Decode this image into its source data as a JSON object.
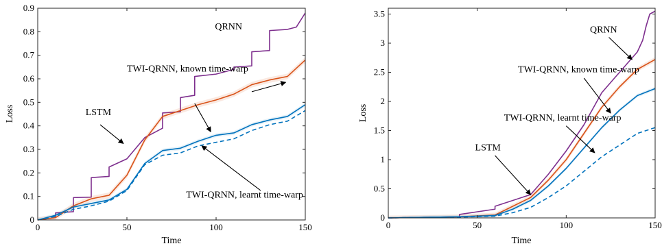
{
  "chart_data": [
    {
      "type": "line",
      "xlabel": "Time",
      "ylabel": "Loss",
      "xlim": [
        0,
        150
      ],
      "ylim": [
        0,
        0.9
      ],
      "xticks": [
        0,
        50,
        100,
        150
      ],
      "yticks": [
        0,
        0.1,
        0.2,
        0.3,
        0.4,
        0.5,
        0.6,
        0.7,
        0.8,
        0.9
      ],
      "ytick_labels": [
        "0",
        "0.1",
        "0.2",
        "0.3",
        "0.4",
        "0.5",
        "0.6",
        "0.7",
        "0.8",
        "0.9"
      ],
      "grid": false,
      "series": [
        {
          "id": "qrnn",
          "color": "#7E2F8E",
          "dash": false,
          "x": [
            0,
            10,
            10,
            20,
            20,
            30,
            30,
            40,
            40,
            50,
            60,
            70,
            70,
            80,
            80,
            88,
            88,
            100,
            110,
            110,
            120,
            120,
            130,
            130,
            140,
            145,
            150
          ],
          "y": [
            0,
            0.01,
            0.03,
            0.035,
            0.095,
            0.097,
            0.18,
            0.185,
            0.225,
            0.26,
            0.35,
            0.39,
            0.455,
            0.46,
            0.52,
            0.53,
            0.61,
            0.62,
            0.64,
            0.65,
            0.655,
            0.715,
            0.72,
            0.805,
            0.81,
            0.82,
            0.88
          ]
        },
        {
          "id": "twi-known",
          "color": "#D95319",
          "dash": false,
          "band": 0.012,
          "x": [
            0,
            10,
            20,
            30,
            40,
            50,
            60,
            70,
            80,
            90,
            100,
            110,
            120,
            130,
            140,
            150
          ],
          "y": [
            0,
            0.01,
            0.06,
            0.09,
            0.105,
            0.19,
            0.34,
            0.44,
            0.465,
            0.49,
            0.51,
            0.535,
            0.575,
            0.595,
            0.61,
            0.68
          ]
        },
        {
          "id": "twi-learnt",
          "color": "#0072BD",
          "dash": false,
          "band": 0.008,
          "x": [
            0,
            10,
            20,
            30,
            40,
            50,
            60,
            70,
            80,
            90,
            100,
            110,
            120,
            130,
            140,
            150
          ],
          "y": [
            0,
            0.02,
            0.055,
            0.07,
            0.085,
            0.13,
            0.24,
            0.295,
            0.305,
            0.335,
            0.36,
            0.37,
            0.405,
            0.425,
            0.44,
            0.49
          ]
        },
        {
          "id": "lstm",
          "color": "#0072BD",
          "dash": true,
          "x": [
            0,
            10,
            20,
            30,
            40,
            50,
            60,
            70,
            80,
            90,
            100,
            110,
            120,
            130,
            140,
            150
          ],
          "y": [
            0,
            0.015,
            0.045,
            0.06,
            0.08,
            0.125,
            0.235,
            0.275,
            0.285,
            0.315,
            0.33,
            0.345,
            0.38,
            0.405,
            0.42,
            0.465
          ]
        }
      ],
      "annotations": [
        {
          "text": "QRNN",
          "tx": 107,
          "ty": 0.81,
          "ax": 113,
          "ay": 0.78,
          "hx": 113,
          "hy": 0.78,
          "anchor": "middle",
          "arrow": false
        },
        {
          "text": "TWI-QRNN, known time-warp",
          "tx": 50,
          "ty": 0.63,
          "ax": 88,
          "ay": 0.495,
          "hx": 97,
          "hy": 0.375,
          "anchor": "start",
          "arrow": true
        },
        {
          "text": "LSTM",
          "tx": 34,
          "ty": 0.445,
          "ax": 35,
          "ay": 0.405,
          "hx": 48,
          "hy": 0.325,
          "anchor": "middle",
          "arrow": true
        },
        {
          "text": "TWI-QRNN, learnt time-warp",
          "tx": 116,
          "ty": 0.095,
          "ax": 125,
          "ay": 0.125,
          "hx": 92,
          "hy": 0.315,
          "anchor": "middle",
          "arrow": true
        },
        {
          "text": "",
          "tx": 0,
          "ty": 0,
          "ax": 120,
          "ay": 0.545,
          "hx": 139,
          "hy": 0.585,
          "anchor": "start",
          "arrow": true
        }
      ],
      "annotation_texts": [
        "QRNN",
        "TWI-QRNN, known time-warp",
        "LSTM",
        "TWI-QRNN, learnt time-warp"
      ]
    },
    {
      "type": "line",
      "xlabel": "Time",
      "ylabel": "Loss",
      "xlim": [
        0,
        150
      ],
      "ylim": [
        0,
        3.6
      ],
      "xticks": [
        0,
        50,
        100,
        150
      ],
      "yticks": [
        0,
        0.5,
        1,
        1.5,
        2,
        2.5,
        3,
        3.5
      ],
      "ytick_labels": [
        "0",
        "0.5",
        "1",
        "1.5",
        "2",
        "2.5",
        "3",
        "3.5"
      ],
      "grid": false,
      "series": [
        {
          "id": "qrnn",
          "color": "#7E2F8E",
          "dash": false,
          "x": [
            0,
            20,
            40,
            40,
            60,
            60,
            80,
            90,
            100,
            110,
            120,
            130,
            140,
            143,
            145,
            147,
            150
          ],
          "y": [
            0,
            0.01,
            0.02,
            0.06,
            0.15,
            0.2,
            0.4,
            0.75,
            1.15,
            1.6,
            2.15,
            2.5,
            2.85,
            3.05,
            3.3,
            3.5,
            3.55
          ]
        },
        {
          "id": "twi-known",
          "color": "#D95319",
          "dash": false,
          "band": 0.04,
          "x": [
            0,
            20,
            40,
            60,
            70,
            80,
            90,
            100,
            110,
            120,
            130,
            140,
            150
          ],
          "y": [
            0,
            0.01,
            0.02,
            0.05,
            0.2,
            0.35,
            0.65,
            1.0,
            1.45,
            1.9,
            2.25,
            2.55,
            2.72
          ]
        },
        {
          "id": "twi-learnt",
          "color": "#0072BD",
          "dash": false,
          "band": 0.03,
          "x": [
            0,
            20,
            40,
            60,
            70,
            80,
            90,
            100,
            110,
            120,
            130,
            140,
            150
          ],
          "y": [
            0,
            0.01,
            0.02,
            0.04,
            0.15,
            0.3,
            0.55,
            0.85,
            1.2,
            1.55,
            1.85,
            2.1,
            2.22
          ]
        },
        {
          "id": "lstm",
          "color": "#0072BD",
          "dash": true,
          "x": [
            0,
            20,
            40,
            60,
            70,
            80,
            90,
            100,
            110,
            120,
            130,
            140,
            150
          ],
          "y": [
            0,
            0.01,
            0.015,
            0.03,
            0.09,
            0.18,
            0.35,
            0.55,
            0.8,
            1.05,
            1.25,
            1.45,
            1.55
          ]
        }
      ],
      "annotations": [
        {
          "text": "QRNN",
          "tx": 121,
          "ty": 3.18,
          "ax": 124,
          "ay": 3.1,
          "hx": 137,
          "hy": 2.72,
          "anchor": "middle",
          "arrow": true
        },
        {
          "text": "TWI-QRNN, known time-warp",
          "tx": 107,
          "ty": 2.5,
          "ax": 110,
          "ay": 2.4,
          "hx": 125,
          "hy": 1.8,
          "anchor": "middle",
          "arrow": true
        },
        {
          "text": "TWI-QRNN, learnt time-warp",
          "tx": 98,
          "ty": 1.67,
          "ax": 100,
          "ay": 1.58,
          "hx": 116,
          "hy": 1.12,
          "anchor": "middle",
          "arrow": true
        },
        {
          "text": "LSTM",
          "tx": 56,
          "ty": 1.16,
          "ax": 60,
          "ay": 1.07,
          "hx": 80,
          "hy": 0.4,
          "anchor": "middle",
          "arrow": true
        }
      ],
      "annotation_texts": [
        "QRNN",
        "TWI-QRNN, known time-warp",
        "TWI-QRNN, learnt time-warp",
        "LSTM"
      ]
    }
  ]
}
